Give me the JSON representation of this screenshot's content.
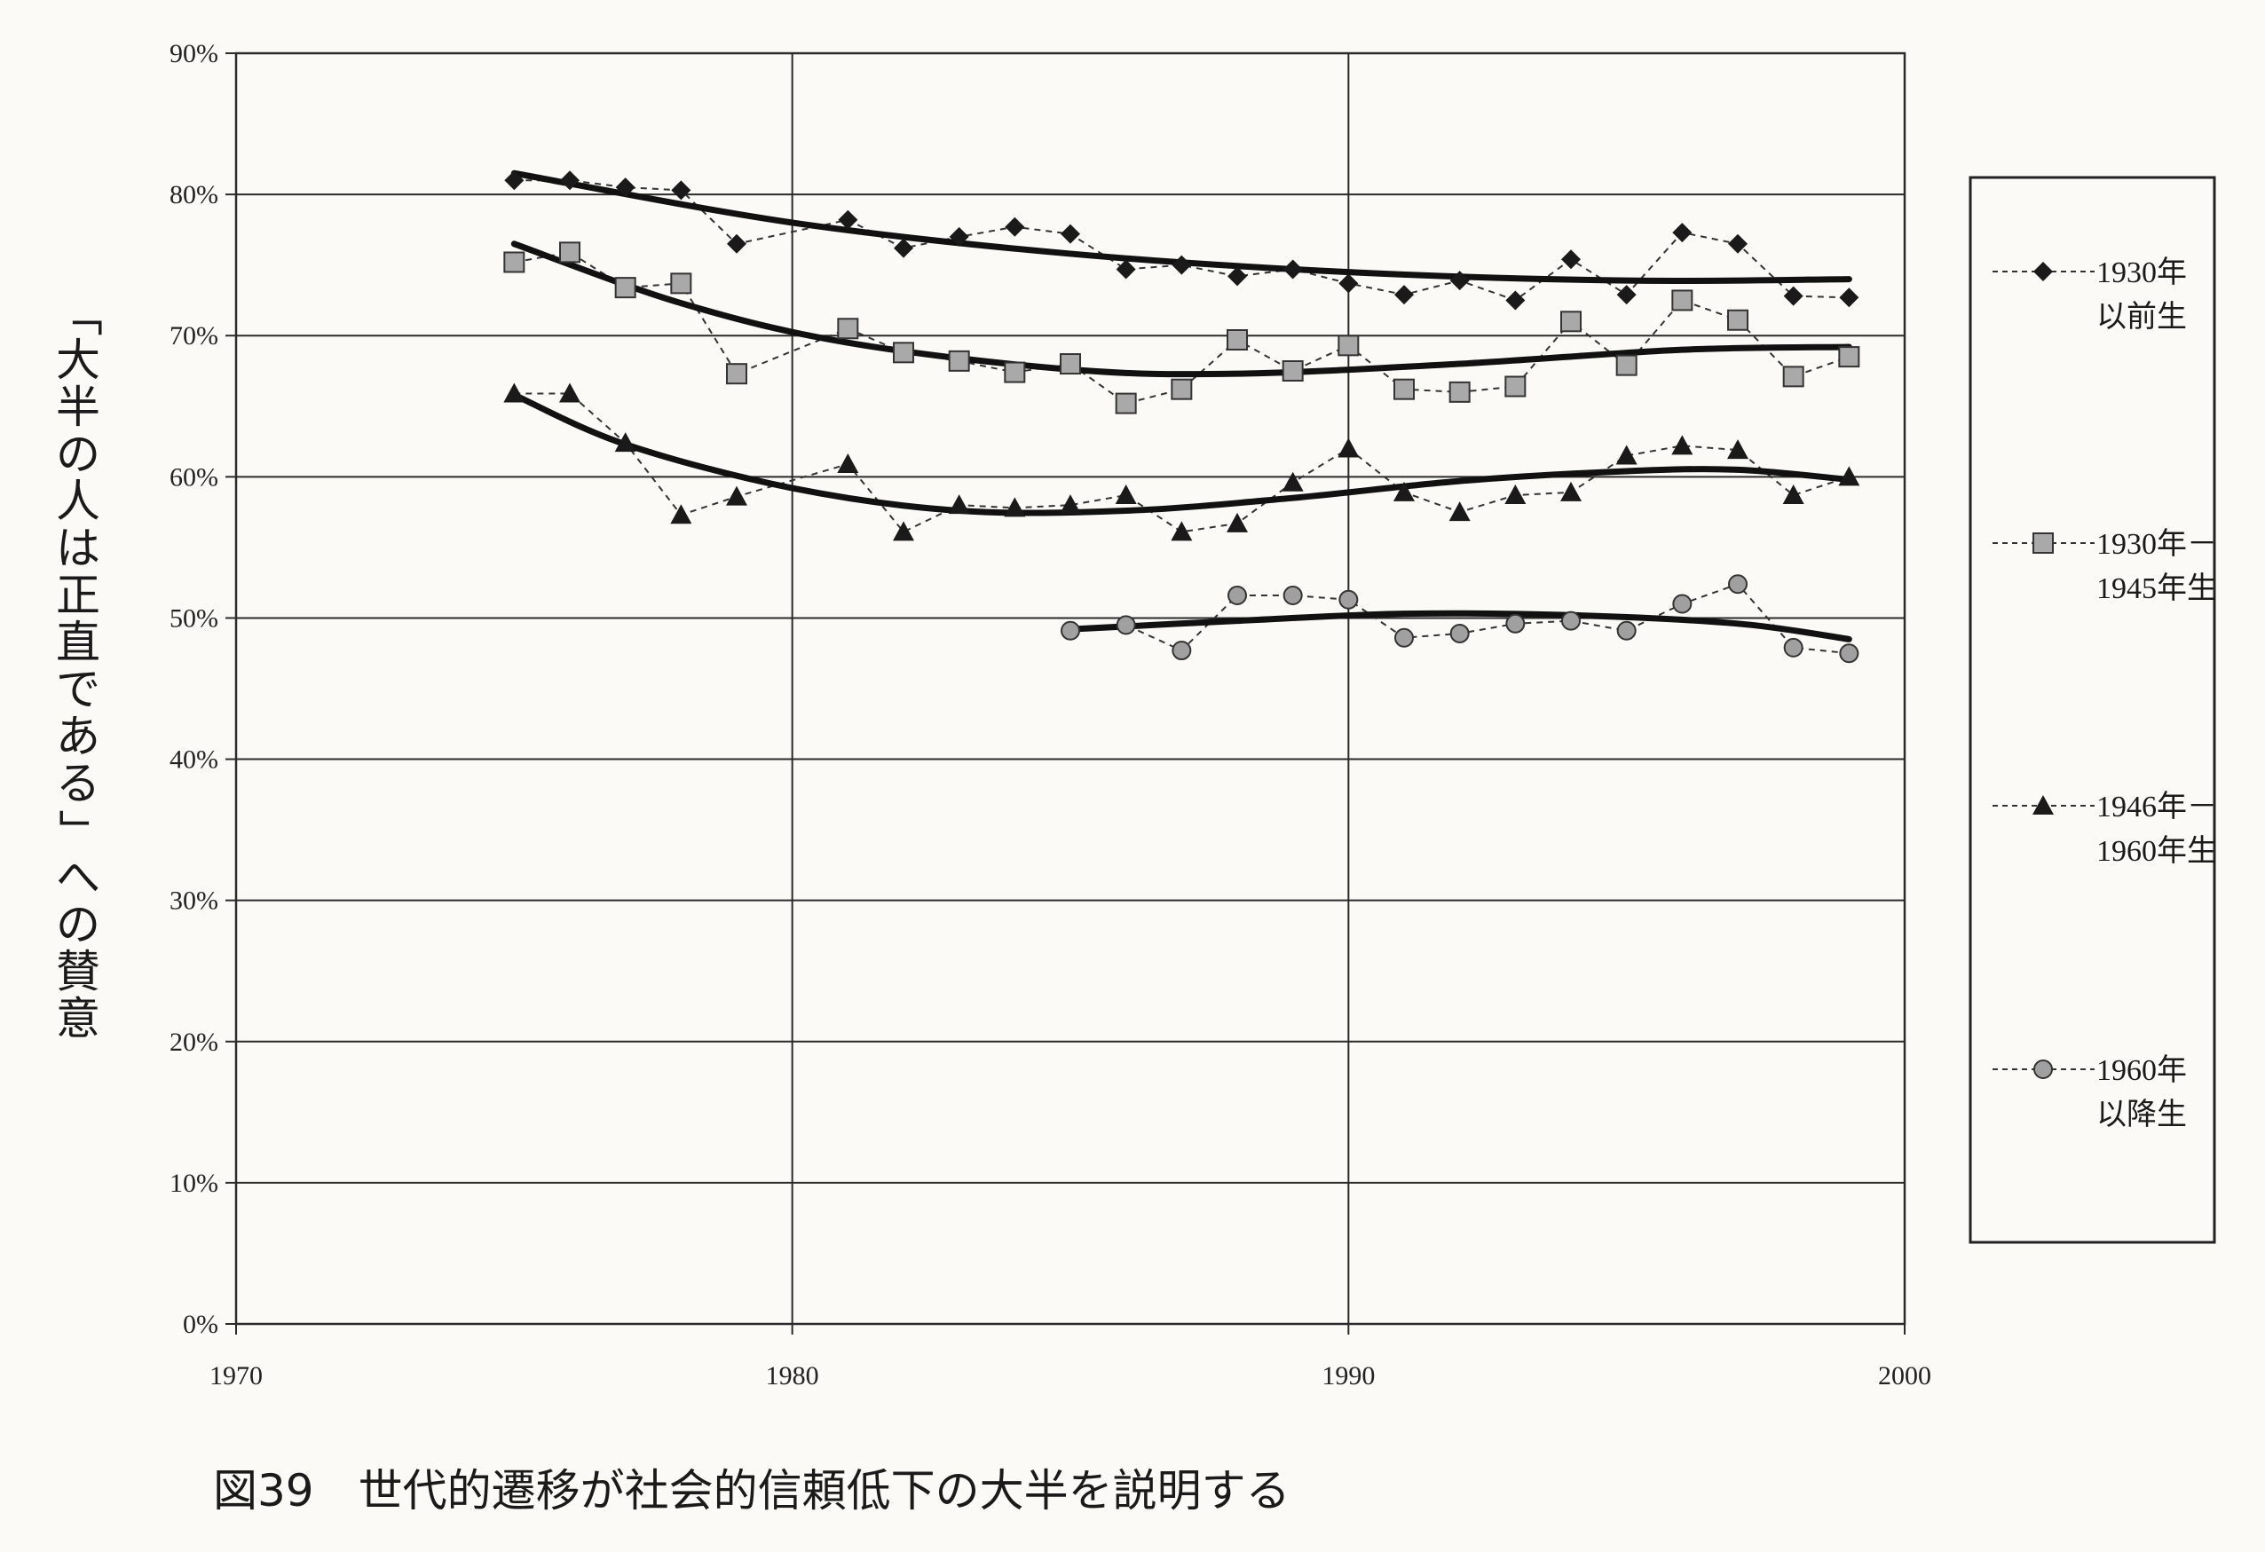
{
  "caption": "図39　世代的遷移が社会的信頼低下の大半を説明する",
  "chart_data": {
    "type": "line",
    "title": "",
    "xlabel": "",
    "ylabel": "「大半の人は正直である」への賛意",
    "xlim": [
      1970,
      2000
    ],
    "ylim": [
      0,
      90
    ],
    "x_ticks": [
      "1970",
      "1980",
      "1990",
      "2000"
    ],
    "y_ticks": [
      "0%",
      "10%",
      "20%",
      "30%",
      "40%",
      "50%",
      "60%",
      "70%",
      "80%",
      "90%"
    ],
    "grid": true,
    "legend_position": "right",
    "series": [
      {
        "name_lines": [
          "1930年",
          "以前生"
        ],
        "marker": "diamond",
        "color": "#1a1a1a",
        "points": [
          [
            1975,
            81
          ],
          [
            1976,
            81
          ],
          [
            1977,
            80.5
          ],
          [
            1978,
            80.3
          ],
          [
            1979,
            76.5
          ],
          [
            1981,
            78.2
          ],
          [
            1982,
            76.2
          ],
          [
            1983,
            77
          ],
          [
            1984,
            77.7
          ],
          [
            1985,
            77.2
          ],
          [
            1986,
            74.7
          ],
          [
            1987,
            75
          ],
          [
            1988,
            74.2
          ],
          [
            1989,
            74.7
          ],
          [
            1990,
            73.7
          ],
          [
            1991,
            72.9
          ],
          [
            1992,
            73.9
          ],
          [
            1993,
            72.5
          ],
          [
            1994,
            75.4
          ],
          [
            1995,
            72.9
          ],
          [
            1996,
            77.3
          ],
          [
            1997,
            76.5
          ],
          [
            1998,
            72.8
          ],
          [
            1999,
            72.7
          ]
        ],
        "trend": [
          [
            1975,
            81.5
          ],
          [
            1980,
            78
          ],
          [
            1985,
            75.8
          ],
          [
            1990,
            74.5
          ],
          [
            1995,
            73.9
          ],
          [
            1999,
            74
          ]
        ]
      },
      {
        "name_lines": [
          "1930年－",
          "1945年生"
        ],
        "marker": "square",
        "color": "#1a1a1a",
        "points": [
          [
            1975,
            75.2
          ],
          [
            1976,
            75.9
          ],
          [
            1977,
            73.4
          ],
          [
            1978,
            73.7
          ],
          [
            1979,
            67.3
          ],
          [
            1981,
            70.5
          ],
          [
            1982,
            68.8
          ],
          [
            1983,
            68.2
          ],
          [
            1984,
            67.4
          ],
          [
            1985,
            68
          ],
          [
            1986,
            65.2
          ],
          [
            1987,
            66.2
          ],
          [
            1988,
            69.7
          ],
          [
            1989,
            67.5
          ],
          [
            1990,
            69.3
          ],
          [
            1991,
            66.2
          ],
          [
            1992,
            66
          ],
          [
            1993,
            66.4
          ],
          [
            1994,
            71
          ],
          [
            1995,
            67.9
          ],
          [
            1996,
            72.5
          ],
          [
            1997,
            71.1
          ],
          [
            1998,
            67.1
          ],
          [
            1999,
            68.5
          ]
        ],
        "trend": [
          [
            1975,
            76.5
          ],
          [
            1978,
            72.3
          ],
          [
            1981,
            69.5
          ],
          [
            1985,
            67.6
          ],
          [
            1988,
            67.3
          ],
          [
            1992,
            68
          ],
          [
            1996,
            69
          ],
          [
            1999,
            69.2
          ]
        ]
      },
      {
        "name_lines": [
          "1946年－",
          "1960年生"
        ],
        "marker": "triangle",
        "color": "#1a1a1a",
        "points": [
          [
            1975,
            65.9
          ],
          [
            1976,
            65.9
          ],
          [
            1977,
            62.4
          ],
          [
            1978,
            57.3
          ],
          [
            1979,
            58.6
          ],
          [
            1981,
            60.9
          ],
          [
            1982,
            56.1
          ],
          [
            1983,
            58
          ],
          [
            1984,
            57.8
          ],
          [
            1985,
            58
          ],
          [
            1986,
            58.7
          ],
          [
            1987,
            56.1
          ],
          [
            1988,
            56.7
          ],
          [
            1989,
            59.6
          ],
          [
            1990,
            62
          ],
          [
            1991,
            58.9
          ],
          [
            1992,
            57.5
          ],
          [
            1993,
            58.7
          ],
          [
            1994,
            58.9
          ],
          [
            1995,
            61.5
          ],
          [
            1996,
            62.2
          ],
          [
            1997,
            61.9
          ],
          [
            1998,
            58.7
          ],
          [
            1999,
            60
          ]
        ],
        "trend": [
          [
            1975,
            65.8
          ],
          [
            1977,
            62.3
          ],
          [
            1980,
            59.2
          ],
          [
            1983,
            57.6
          ],
          [
            1986,
            57.6
          ],
          [
            1989,
            58.5
          ],
          [
            1992,
            59.7
          ],
          [
            1995,
            60.4
          ],
          [
            1997,
            60.5
          ],
          [
            1999,
            59.8
          ]
        ]
      },
      {
        "name_lines": [
          "1960年",
          "以降生"
        ],
        "marker": "circle",
        "color": "#1a1a1a",
        "points": [
          [
            1985,
            49.1
          ],
          [
            1986,
            49.5
          ],
          [
            1987,
            47.7
          ],
          [
            1988,
            51.6
          ],
          [
            1989,
            51.6
          ],
          [
            1990,
            51.3
          ],
          [
            1991,
            48.6
          ],
          [
            1992,
            48.9
          ],
          [
            1993,
            49.6
          ],
          [
            1994,
            49.8
          ],
          [
            1995,
            49.1
          ],
          [
            1996,
            51
          ],
          [
            1997,
            52.4
          ],
          [
            1998,
            47.9
          ],
          [
            1999,
            47.5
          ]
        ],
        "trend": [
          [
            1985,
            49.2
          ],
          [
            1988,
            49.8
          ],
          [
            1991,
            50.3
          ],
          [
            1994,
            50.2
          ],
          [
            1997,
            49.6
          ],
          [
            1999,
            48.5
          ]
        ]
      }
    ]
  }
}
